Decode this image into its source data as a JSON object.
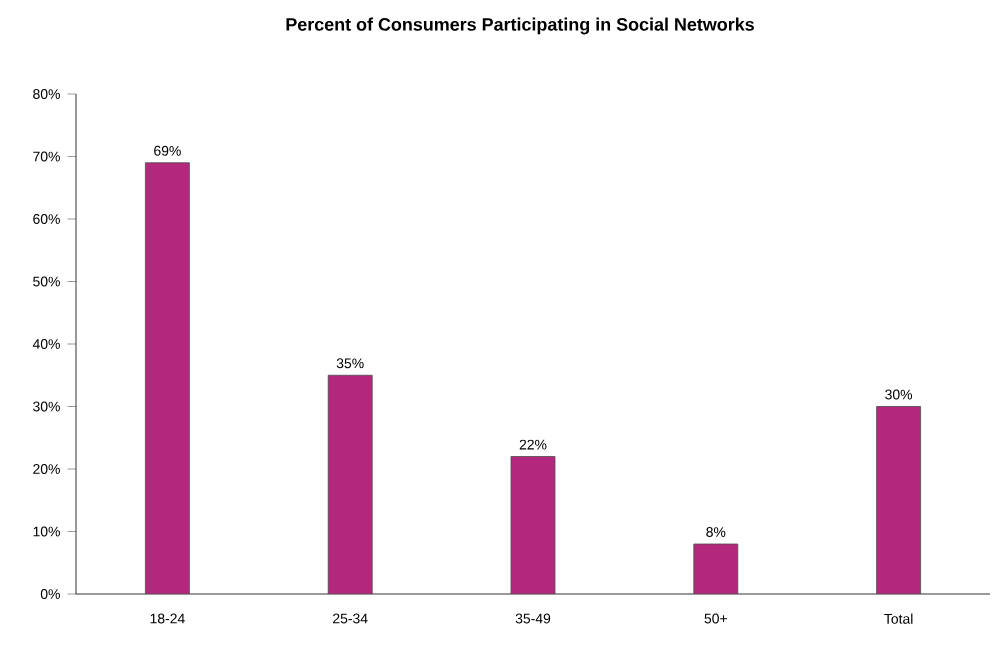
{
  "chart_data": {
    "type": "bar",
    "title": "Percent of Consumers Participating in Social Networks",
    "categories": [
      "18-24",
      "25-34",
      "35-49",
      "50+",
      "Total"
    ],
    "values": [
      69,
      35,
      22,
      8,
      30
    ],
    "value_labels": [
      "69%",
      "35%",
      "22%",
      "8%",
      "30%"
    ],
    "color": "#b3287c",
    "ylim": [
      0,
      80
    ],
    "yticks": [
      {
        "value": 0,
        "label": "0%"
      },
      {
        "value": 10,
        "label": "10%"
      },
      {
        "value": 20,
        "label": "20%"
      },
      {
        "value": 30,
        "label": "30%"
      },
      {
        "value": 40,
        "label": "40%"
      },
      {
        "value": 50,
        "label": "50%"
      },
      {
        "value": 60,
        "label": "60%"
      },
      {
        "value": 70,
        "label": "70%"
      },
      {
        "value": 80,
        "label": "80%"
      }
    ]
  }
}
